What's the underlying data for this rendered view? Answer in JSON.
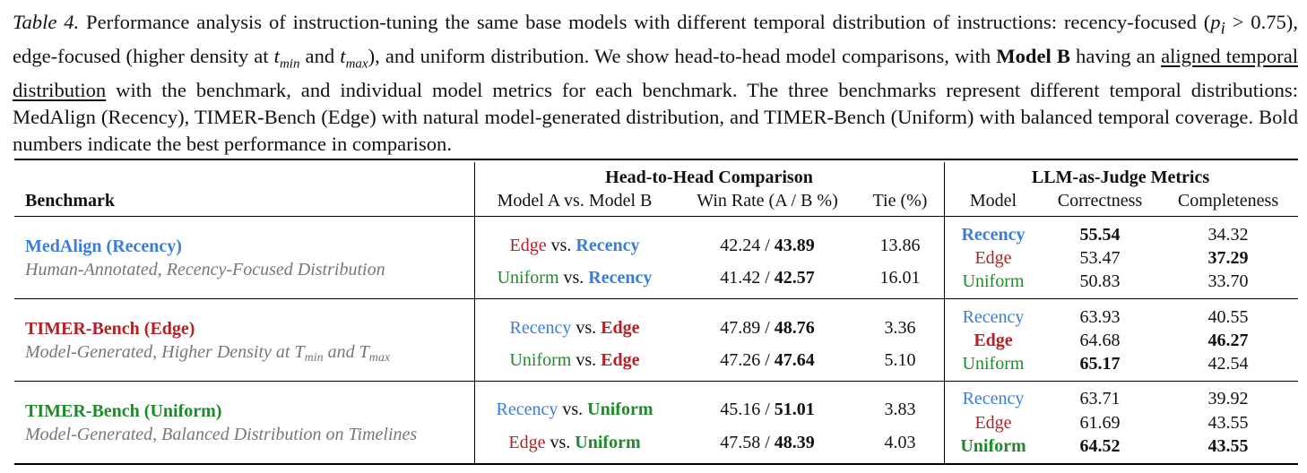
{
  "caption": {
    "label": "Table 4.",
    "p1": " Performance analysis of instruction-tuning the same base models with different temporal distribution of instructions: recency-focused (",
    "pvar": "p",
    "psub": "i",
    "p2": " > 0.75), edge-focused (higher density at ",
    "t": "t",
    "tmin": "min",
    "and": " and ",
    "tmax": "max",
    "p3": "), and uniform distribution. We show head-to-head model comparisons, with ",
    "modelb": "Model B",
    "p4": " having an ",
    "underlined": "aligned temporal distribution",
    "p5": " with the benchmark, and individual model metrics for each benchmark. The three benchmarks represent different temporal distributions: MedAlign (Recency), TIMER-Bench (Edge) with natural model-generated distribution, and TIMER-Bench (Uniform) with balanced temporal coverage. Bold numbers indicate the best performance in comparison."
  },
  "header": {
    "group1": "Head-to-Head Comparison",
    "group2": "LLM-as-Judge Metrics",
    "benchmark": "Benchmark",
    "model_ab": "Model A vs. Model B",
    "winrate": "Win Rate (A / B %)",
    "tie": "Tie (%)",
    "model": "Model",
    "correctness": "Correctness",
    "completeness": "Completeness"
  },
  "vs": "vs.",
  "slash": "/",
  "sections": [
    {
      "title": "MedAlign (Recency)",
      "subtitle": "Human-Annotated, Recency-Focused Distribution",
      "comparisons": [
        {
          "a": "Edge",
          "b": "Recency",
          "wa": "42.24",
          "wb": "43.89",
          "tie": "13.86"
        },
        {
          "a": "Uniform",
          "b": "Recency",
          "wa": "41.42",
          "wb": "42.57",
          "tie": "16.01"
        }
      ],
      "metrics": [
        {
          "model": "Recency",
          "correctness": "55.54",
          "completeness": "34.32"
        },
        {
          "model": "Edge",
          "correctness": "53.47",
          "completeness": "37.29"
        },
        {
          "model": "Uniform",
          "correctness": "50.83",
          "completeness": "33.70"
        }
      ]
    },
    {
      "title": "TIMER-Bench (Edge)",
      "subtitle_pre": "Model-Generated, Higher Density at ",
      "subtitle_T": "T",
      "subtitle_min": "min",
      "subtitle_and": " and ",
      "subtitle_max": "max",
      "comparisons": [
        {
          "a": "Recency",
          "b": "Edge",
          "wa": "47.89",
          "wb": "48.76",
          "tie": "3.36"
        },
        {
          "a": "Uniform",
          "b": "Edge",
          "wa": "47.26",
          "wb": "47.64",
          "tie": "5.10"
        }
      ],
      "metrics": [
        {
          "model": "Recency",
          "correctness": "63.93",
          "completeness": "40.55"
        },
        {
          "model": "Edge",
          "correctness": "64.68",
          "completeness": "46.27"
        },
        {
          "model": "Uniform",
          "correctness": "65.17",
          "completeness": "42.54"
        }
      ]
    },
    {
      "title": "TIMER-Bench (Uniform)",
      "subtitle": "Model-Generated, Balanced Distribution on Timelines",
      "comparisons": [
        {
          "a": "Recency",
          "b": "Uniform",
          "wa": "45.16",
          "wb": "51.01",
          "tie": "3.83"
        },
        {
          "a": "Edge",
          "b": "Uniform",
          "wa": "47.58",
          "wb": "48.39",
          "tie": "4.03"
        }
      ],
      "metrics": [
        {
          "model": "Recency",
          "correctness": "63.71",
          "completeness": "39.92"
        },
        {
          "model": "Edge",
          "correctness": "61.69",
          "completeness": "43.55"
        },
        {
          "model": "Uniform",
          "correctness": "64.52",
          "completeness": "43.55"
        }
      ]
    }
  ]
}
